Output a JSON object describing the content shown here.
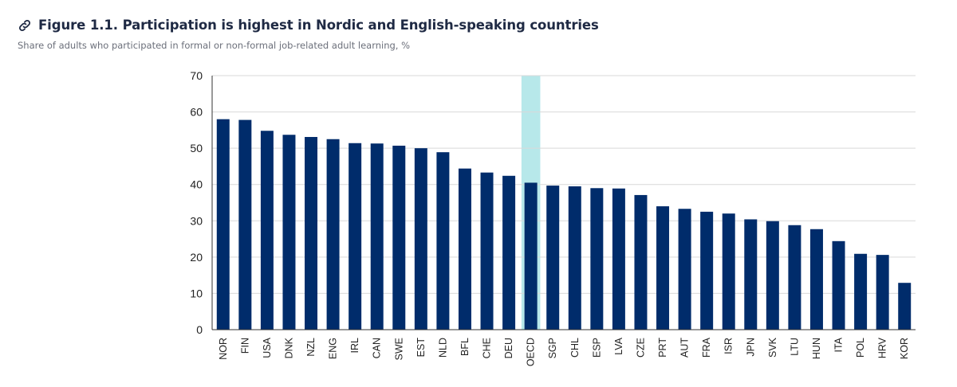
{
  "header": {
    "title": "Figure 1.1. Participation is highest in Nordic and English-speaking countries",
    "subtitle": "Share of adults who participated in formal or non-formal job-related adult learning, %",
    "icon": "link-icon"
  },
  "chart_data": {
    "type": "bar",
    "title": "Figure 1.1. Participation is highest in Nordic and English-speaking countries",
    "subtitle": "Share of adults who participated in formal or non-formal job-related adult learning, %",
    "xlabel": "",
    "ylabel": "",
    "ylim": [
      0,
      70
    ],
    "yticks": [
      0,
      10,
      20,
      30,
      40,
      50,
      60,
      70
    ],
    "grid": true,
    "highlight_category": "OECD",
    "colors": {
      "bar": "#002c6b",
      "highlight": "#b7e8ea",
      "grid": "#d9d9d9",
      "axis": "#333333"
    },
    "categories": [
      "NOR",
      "FIN",
      "USA",
      "DNK",
      "NZL",
      "ENG",
      "IRL",
      "CAN",
      "SWE",
      "EST",
      "NLD",
      "BFL",
      "CHE",
      "DEU",
      "OECD",
      "SGP",
      "CHL",
      "ESP",
      "LVA",
      "CZE",
      "PRT",
      "AUT",
      "FRA",
      "ISR",
      "JPN",
      "SVK",
      "LTU",
      "HUN",
      "ITA",
      "POL",
      "HRV",
      "KOR"
    ],
    "values": [
      58.0,
      57.8,
      54.8,
      53.7,
      53.1,
      52.5,
      51.4,
      51.3,
      50.7,
      50.0,
      48.9,
      44.4,
      43.3,
      42.4,
      40.5,
      39.7,
      39.5,
      39.0,
      38.9,
      37.1,
      34.0,
      33.3,
      32.5,
      32.0,
      30.4,
      29.9,
      28.8,
      27.7,
      24.4,
      20.9,
      20.6,
      12.9
    ]
  }
}
